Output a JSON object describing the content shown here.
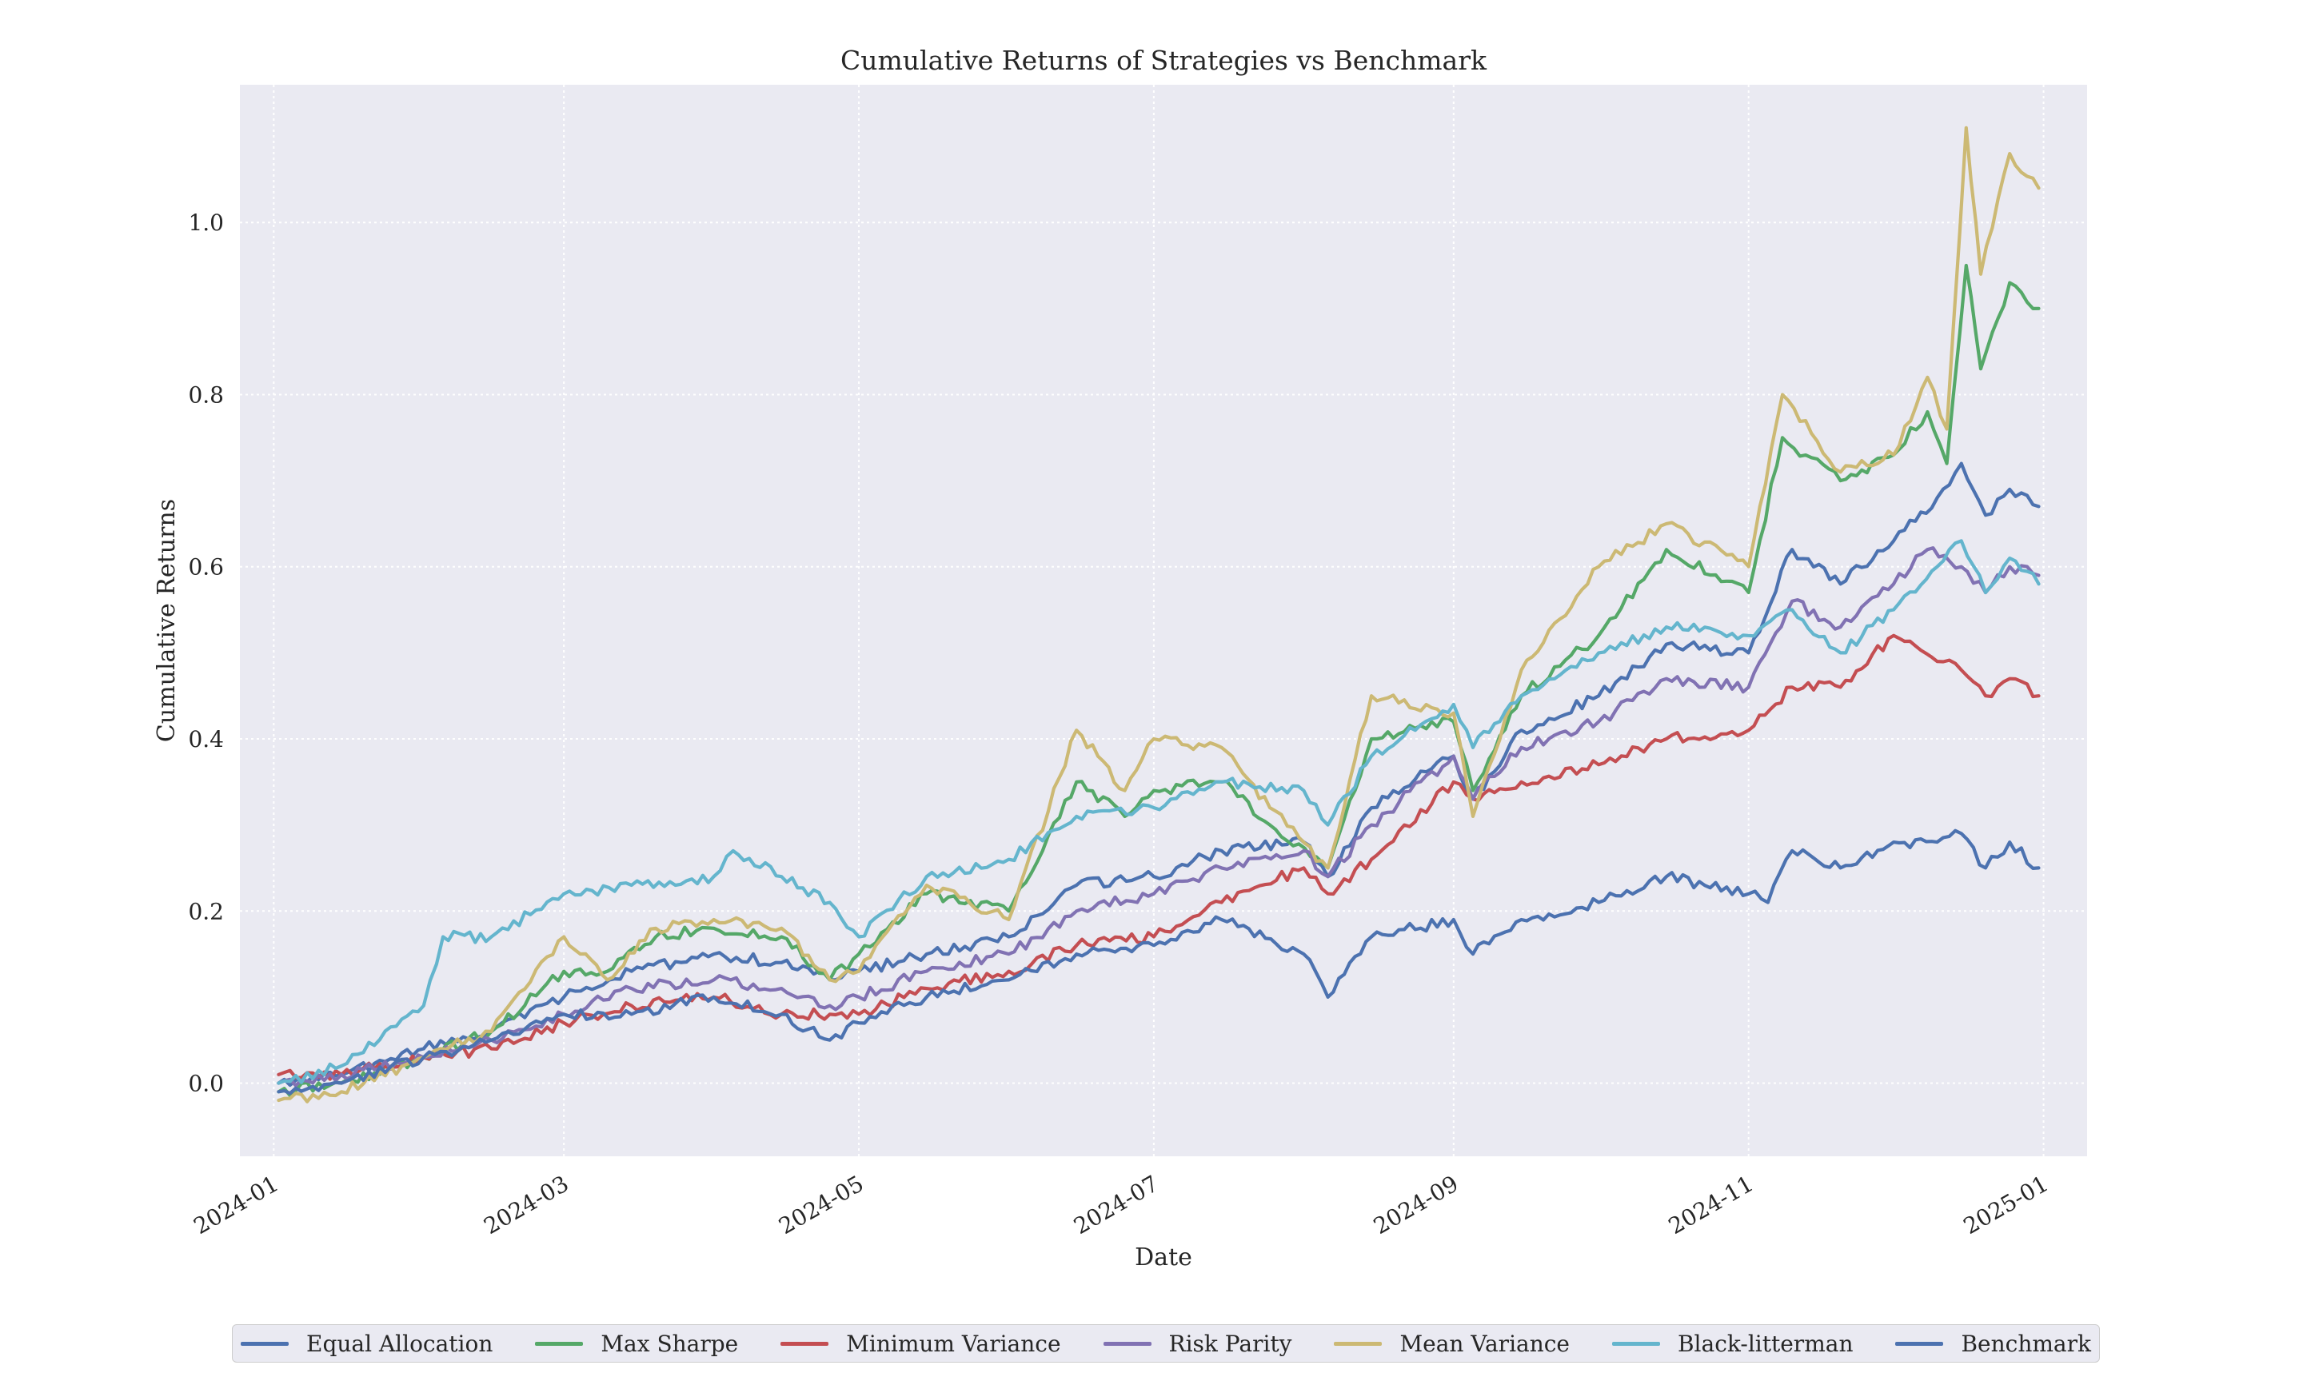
{
  "chart_data": {
    "type": "line",
    "title": "Cumulative Returns of Strategies vs Benchmark",
    "xlabel": "Date",
    "ylabel": "Cumulative Returns",
    "x_range": [
      "2023-12-25",
      "2025-01-10"
    ],
    "ylim": [
      -0.085,
      1.16
    ],
    "x_ticks": [
      {
        "date": "2024-01-01",
        "label": "2024-01"
      },
      {
        "date": "2024-03-01",
        "label": "2024-03"
      },
      {
        "date": "2024-05-01",
        "label": "2024-05"
      },
      {
        "date": "2024-07-01",
        "label": "2024-07"
      },
      {
        "date": "2024-09-01",
        "label": "2024-09"
      },
      {
        "date": "2024-11-01",
        "label": "2024-11"
      },
      {
        "date": "2025-01-01",
        "label": "2025-01"
      }
    ],
    "y_ticks": [
      {
        "value": 0.0,
        "label": "0.0"
      },
      {
        "value": 0.2,
        "label": "0.2"
      },
      {
        "value": 0.4,
        "label": "0.4"
      },
      {
        "value": 0.6,
        "label": "0.6"
      },
      {
        "value": 0.8,
        "label": "0.8"
      },
      {
        "value": 1.0,
        "label": "1.0"
      }
    ],
    "grid": true,
    "legend_position": "bottom-center",
    "series": [
      {
        "name": "Equal Allocation",
        "color": "#4c72b0",
        "points": [
          [
            "2024-01-02",
            0.0
          ],
          [
            "2024-01-15",
            0.01
          ],
          [
            "2024-02-01",
            0.04
          ],
          [
            "2024-02-15",
            0.06
          ],
          [
            "2024-03-01",
            0.1
          ],
          [
            "2024-03-15",
            0.13
          ],
          [
            "2024-04-01",
            0.15
          ],
          [
            "2024-04-15",
            0.14
          ],
          [
            "2024-04-25",
            0.12
          ],
          [
            "2024-05-01",
            0.13
          ],
          [
            "2024-05-15",
            0.15
          ],
          [
            "2024-06-01",
            0.17
          ],
          [
            "2024-06-15",
            0.23
          ],
          [
            "2024-07-01",
            0.24
          ],
          [
            "2024-07-15",
            0.27
          ],
          [
            "2024-08-01",
            0.28
          ],
          [
            "2024-08-06",
            0.24
          ],
          [
            "2024-08-15",
            0.32
          ],
          [
            "2024-09-01",
            0.38
          ],
          [
            "2024-09-05",
            0.33
          ],
          [
            "2024-09-15",
            0.41
          ],
          [
            "2024-10-01",
            0.45
          ],
          [
            "2024-10-15",
            0.51
          ],
          [
            "2024-11-01",
            0.5
          ],
          [
            "2024-11-10",
            0.62
          ],
          [
            "2024-11-20",
            0.58
          ],
          [
            "2024-12-01",
            0.63
          ],
          [
            "2024-12-10",
            0.68
          ],
          [
            "2024-12-15",
            0.72
          ],
          [
            "2024-12-20",
            0.66
          ],
          [
            "2024-12-25",
            0.69
          ],
          [
            "2024-12-31",
            0.67
          ]
        ]
      },
      {
        "name": "Max Sharpe",
        "color": "#55a868",
        "points": [
          [
            "2024-01-02",
            -0.01
          ],
          [
            "2024-01-15",
            0.0
          ],
          [
            "2024-02-01",
            0.03
          ],
          [
            "2024-02-15",
            0.06
          ],
          [
            "2024-03-01",
            0.13
          ],
          [
            "2024-03-10",
            0.13
          ],
          [
            "2024-03-20",
            0.17
          ],
          [
            "2024-04-01",
            0.18
          ],
          [
            "2024-04-15",
            0.17
          ],
          [
            "2024-04-25",
            0.12
          ],
          [
            "2024-05-01",
            0.15
          ],
          [
            "2024-05-15",
            0.22
          ],
          [
            "2024-06-01",
            0.2
          ],
          [
            "2024-06-15",
            0.35
          ],
          [
            "2024-06-25",
            0.31
          ],
          [
            "2024-07-01",
            0.34
          ],
          [
            "2024-07-15",
            0.35
          ],
          [
            "2024-07-25",
            0.3
          ],
          [
            "2024-08-06",
            0.25
          ],
          [
            "2024-08-15",
            0.4
          ],
          [
            "2024-09-01",
            0.42
          ],
          [
            "2024-09-05",
            0.34
          ],
          [
            "2024-09-15",
            0.45
          ],
          [
            "2024-10-01",
            0.52
          ],
          [
            "2024-10-15",
            0.62
          ],
          [
            "2024-11-01",
            0.57
          ],
          [
            "2024-11-08",
            0.75
          ],
          [
            "2024-11-20",
            0.7
          ],
          [
            "2024-12-01",
            0.73
          ],
          [
            "2024-12-08",
            0.78
          ],
          [
            "2024-12-12",
            0.72
          ],
          [
            "2024-12-16",
            0.95
          ],
          [
            "2024-12-19",
            0.83
          ],
          [
            "2024-12-25",
            0.93
          ],
          [
            "2024-12-31",
            0.9
          ]
        ]
      },
      {
        "name": "Minimum Variance",
        "color": "#c44e52",
        "points": [
          [
            "2024-01-02",
            0.01
          ],
          [
            "2024-01-15",
            0.01
          ],
          [
            "2024-02-01",
            0.03
          ],
          [
            "2024-02-15",
            0.04
          ],
          [
            "2024-03-01",
            0.07
          ],
          [
            "2024-03-15",
            0.09
          ],
          [
            "2024-04-01",
            0.1
          ],
          [
            "2024-04-15",
            0.08
          ],
          [
            "2024-04-25",
            0.08
          ],
          [
            "2024-05-01",
            0.08
          ],
          [
            "2024-05-15",
            0.11
          ],
          [
            "2024-06-01",
            0.13
          ],
          [
            "2024-06-15",
            0.16
          ],
          [
            "2024-07-01",
            0.17
          ],
          [
            "2024-07-15",
            0.21
          ],
          [
            "2024-08-01",
            0.25
          ],
          [
            "2024-08-06",
            0.22
          ],
          [
            "2024-08-15",
            0.26
          ],
          [
            "2024-09-01",
            0.35
          ],
          [
            "2024-09-05",
            0.33
          ],
          [
            "2024-09-15",
            0.35
          ],
          [
            "2024-10-01",
            0.37
          ],
          [
            "2024-10-15",
            0.4
          ],
          [
            "2024-11-01",
            0.41
          ],
          [
            "2024-11-10",
            0.46
          ],
          [
            "2024-11-20",
            0.46
          ],
          [
            "2024-12-01",
            0.52
          ],
          [
            "2024-12-10",
            0.49
          ],
          [
            "2024-12-15",
            0.48
          ],
          [
            "2024-12-20",
            0.45
          ],
          [
            "2024-12-25",
            0.47
          ],
          [
            "2024-12-31",
            0.45
          ]
        ]
      },
      {
        "name": "Risk Parity",
        "color": "#8172b3",
        "points": [
          [
            "2024-01-02",
            0.0
          ],
          [
            "2024-01-15",
            0.01
          ],
          [
            "2024-02-01",
            0.03
          ],
          [
            "2024-02-15",
            0.05
          ],
          [
            "2024-03-01",
            0.08
          ],
          [
            "2024-03-15",
            0.11
          ],
          [
            "2024-04-01",
            0.12
          ],
          [
            "2024-04-15",
            0.11
          ],
          [
            "2024-04-25",
            0.09
          ],
          [
            "2024-05-01",
            0.1
          ],
          [
            "2024-05-15",
            0.13
          ],
          [
            "2024-06-01",
            0.15
          ],
          [
            "2024-06-15",
            0.2
          ],
          [
            "2024-07-01",
            0.22
          ],
          [
            "2024-07-15",
            0.25
          ],
          [
            "2024-08-01",
            0.27
          ],
          [
            "2024-08-06",
            0.24
          ],
          [
            "2024-08-15",
            0.3
          ],
          [
            "2024-09-01",
            0.38
          ],
          [
            "2024-09-05",
            0.33
          ],
          [
            "2024-09-15",
            0.39
          ],
          [
            "2024-10-01",
            0.42
          ],
          [
            "2024-10-15",
            0.47
          ],
          [
            "2024-11-01",
            0.46
          ],
          [
            "2024-11-10",
            0.56
          ],
          [
            "2024-11-20",
            0.53
          ],
          [
            "2024-12-01",
            0.58
          ],
          [
            "2024-12-08",
            0.62
          ],
          [
            "2024-12-15",
            0.6
          ],
          [
            "2024-12-20",
            0.57
          ],
          [
            "2024-12-25",
            0.6
          ],
          [
            "2024-12-31",
            0.59
          ]
        ]
      },
      {
        "name": "Mean Variance",
        "color": "#ccb974",
        "points": [
          [
            "2024-01-02",
            -0.02
          ],
          [
            "2024-01-15",
            -0.01
          ],
          [
            "2024-02-01",
            0.03
          ],
          [
            "2024-02-15",
            0.06
          ],
          [
            "2024-03-01",
            0.17
          ],
          [
            "2024-03-10",
            0.12
          ],
          [
            "2024-03-20",
            0.18
          ],
          [
            "2024-04-01",
            0.19
          ],
          [
            "2024-04-15",
            0.18
          ],
          [
            "2024-04-25",
            0.12
          ],
          [
            "2024-05-01",
            0.13
          ],
          [
            "2024-05-15",
            0.23
          ],
          [
            "2024-06-01",
            0.19
          ],
          [
            "2024-06-15",
            0.41
          ],
          [
            "2024-06-25",
            0.34
          ],
          [
            "2024-07-01",
            0.4
          ],
          [
            "2024-07-15",
            0.39
          ],
          [
            "2024-07-25",
            0.32
          ],
          [
            "2024-08-06",
            0.25
          ],
          [
            "2024-08-15",
            0.45
          ],
          [
            "2024-09-01",
            0.43
          ],
          [
            "2024-09-05",
            0.31
          ],
          [
            "2024-09-15",
            0.48
          ],
          [
            "2024-10-01",
            0.6
          ],
          [
            "2024-10-15",
            0.65
          ],
          [
            "2024-11-01",
            0.6
          ],
          [
            "2024-11-08",
            0.8
          ],
          [
            "2024-11-20",
            0.71
          ],
          [
            "2024-12-01",
            0.73
          ],
          [
            "2024-12-08",
            0.82
          ],
          [
            "2024-12-12",
            0.76
          ],
          [
            "2024-12-16",
            1.11
          ],
          [
            "2024-12-19",
            0.94
          ],
          [
            "2024-12-25",
            1.08
          ],
          [
            "2024-12-31",
            1.04
          ]
        ]
      },
      {
        "name": "Black-litterman",
        "color": "#64b5cd",
        "points": [
          [
            "2024-01-02",
            0.0
          ],
          [
            "2024-01-15",
            0.02
          ],
          [
            "2024-02-01",
            0.09
          ],
          [
            "2024-02-05",
            0.17
          ],
          [
            "2024-02-15",
            0.17
          ],
          [
            "2024-03-01",
            0.22
          ],
          [
            "2024-03-15",
            0.23
          ],
          [
            "2024-04-01",
            0.24
          ],
          [
            "2024-04-05",
            0.27
          ],
          [
            "2024-04-15",
            0.24
          ],
          [
            "2024-04-25",
            0.21
          ],
          [
            "2024-05-01",
            0.17
          ],
          [
            "2024-05-15",
            0.24
          ],
          [
            "2024-06-01",
            0.26
          ],
          [
            "2024-06-15",
            0.31
          ],
          [
            "2024-07-01",
            0.32
          ],
          [
            "2024-07-15",
            0.35
          ],
          [
            "2024-08-01",
            0.34
          ],
          [
            "2024-08-06",
            0.3
          ],
          [
            "2024-08-15",
            0.38
          ],
          [
            "2024-09-01",
            0.44
          ],
          [
            "2024-09-05",
            0.39
          ],
          [
            "2024-09-15",
            0.45
          ],
          [
            "2024-10-01",
            0.5
          ],
          [
            "2024-10-15",
            0.53
          ],
          [
            "2024-11-01",
            0.52
          ],
          [
            "2024-11-10",
            0.55
          ],
          [
            "2024-11-20",
            0.5
          ],
          [
            "2024-12-01",
            0.55
          ],
          [
            "2024-12-10",
            0.6
          ],
          [
            "2024-12-15",
            0.63
          ],
          [
            "2024-12-20",
            0.57
          ],
          [
            "2024-12-25",
            0.61
          ],
          [
            "2024-12-31",
            0.58
          ]
        ]
      },
      {
        "name": "Benchmark",
        "color": "#4c72b0",
        "points": [
          [
            "2024-01-02",
            -0.01
          ],
          [
            "2024-01-15",
            0.0
          ],
          [
            "2024-02-01",
            0.03
          ],
          [
            "2024-02-15",
            0.05
          ],
          [
            "2024-03-01",
            0.08
          ],
          [
            "2024-03-15",
            0.08
          ],
          [
            "2024-04-01",
            0.1
          ],
          [
            "2024-04-15",
            0.08
          ],
          [
            "2024-04-25",
            0.05
          ],
          [
            "2024-05-01",
            0.07
          ],
          [
            "2024-05-15",
            0.1
          ],
          [
            "2024-06-01",
            0.12
          ],
          [
            "2024-06-15",
            0.15
          ],
          [
            "2024-07-01",
            0.16
          ],
          [
            "2024-07-15",
            0.19
          ],
          [
            "2024-08-01",
            0.15
          ],
          [
            "2024-08-06",
            0.1
          ],
          [
            "2024-08-15",
            0.17
          ],
          [
            "2024-09-01",
            0.19
          ],
          [
            "2024-09-05",
            0.15
          ],
          [
            "2024-09-15",
            0.19
          ],
          [
            "2024-10-01",
            0.21
          ],
          [
            "2024-10-15",
            0.24
          ],
          [
            "2024-11-01",
            0.22
          ],
          [
            "2024-11-05",
            0.21
          ],
          [
            "2024-11-10",
            0.27
          ],
          [
            "2024-11-20",
            0.25
          ],
          [
            "2024-12-01",
            0.28
          ],
          [
            "2024-12-10",
            0.28
          ],
          [
            "2024-12-15",
            0.29
          ],
          [
            "2024-12-20",
            0.25
          ],
          [
            "2024-12-25",
            0.28
          ],
          [
            "2024-12-31",
            0.25
          ]
        ]
      }
    ]
  }
}
